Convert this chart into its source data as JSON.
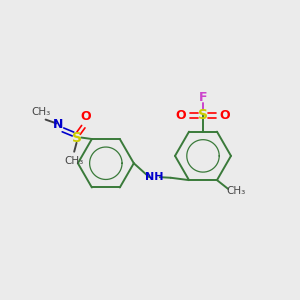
{
  "bg_color": "#ebebeb",
  "bond_color": "#3a7a3a",
  "atom_colors": {
    "S": "#cccc00",
    "O": "#ff0000",
    "N": "#0000cc",
    "F": "#cc44cc",
    "C": "#444444"
  },
  "figsize": [
    3.0,
    3.0
  ],
  "dpi": 100,
  "xlim": [
    0,
    10
  ],
  "ylim": [
    0,
    10
  ]
}
